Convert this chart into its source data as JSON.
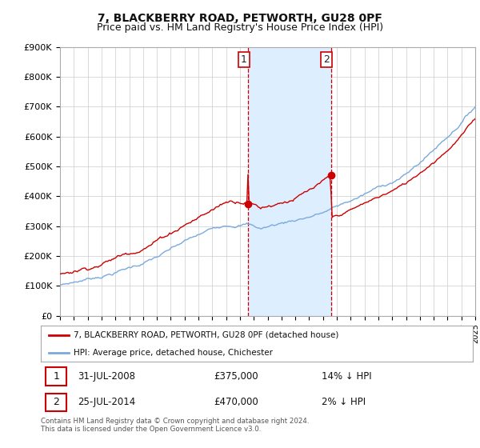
{
  "title": "7, BLACKBERRY ROAD, PETWORTH, GU28 0PF",
  "subtitle": "Price paid vs. HM Land Registry's House Price Index (HPI)",
  "ylim": [
    0,
    900000
  ],
  "yticks": [
    0,
    100000,
    200000,
    300000,
    400000,
    500000,
    600000,
    700000,
    800000,
    900000
  ],
  "ytick_labels": [
    "£0",
    "£100K",
    "£200K",
    "£300K",
    "£400K",
    "£500K",
    "£600K",
    "£700K",
    "£800K",
    "£900K"
  ],
  "sale1_year": 2008.58,
  "sale1_price": 375000,
  "sale1_label": "31-JUL-2008",
  "sale1_amount": "£375,000",
  "sale1_hpi": "14% ↓ HPI",
  "sale2_year": 2014.58,
  "sale2_price": 470000,
  "sale2_label": "25-JUL-2014",
  "sale2_amount": "£470,000",
  "sale2_hpi": "2% ↓ HPI",
  "line_red_color": "#cc0000",
  "line_blue_color": "#7aaadd",
  "shade_color": "#ddeeff",
  "vline_color": "#cc0000",
  "legend_red_label": "7, BLACKBERRY ROAD, PETWORTH, GU28 0PF (detached house)",
  "legend_blue_label": "HPI: Average price, detached house, Chichester",
  "footnote": "Contains HM Land Registry data © Crown copyright and database right 2024.\nThis data is licensed under the Open Government Licence v3.0.",
  "title_fontsize": 10,
  "subtitle_fontsize": 9,
  "background_color": "#ffffff",
  "grid_color": "#cccccc",
  "xstart": 1995,
  "xend": 2025
}
